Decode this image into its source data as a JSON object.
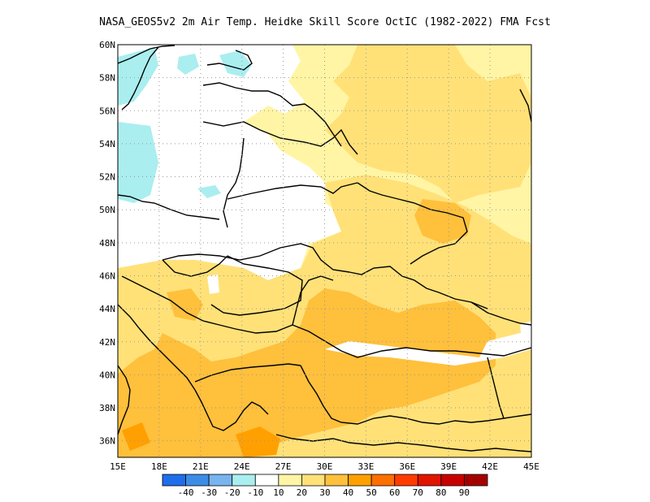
{
  "title": "NASA_GEOS5v2  2m Air Temp. Heidke Skill Score OctIC (1982-2022) FMA Fcst",
  "map": {
    "lon_ticks": [
      "15E",
      "18E",
      "21E",
      "24E",
      "27E",
      "30E",
      "33E",
      "36E",
      "39E",
      "42E",
      "45E"
    ],
    "lat_ticks": [
      "36N",
      "38N",
      "40N",
      "42N",
      "44N",
      "46N",
      "48N",
      "50N",
      "52N",
      "54N",
      "56N",
      "58N",
      "60N"
    ],
    "lon_range": [
      15,
      45
    ],
    "lat_range": [
      35,
      60
    ],
    "grid": "dotted"
  },
  "colorbar": {
    "labels": [
      "-40",
      "-30",
      "-20",
      "-10",
      "10",
      "20",
      "30",
      "40",
      "50",
      "60",
      "70",
      "80",
      "90"
    ],
    "colors": [
      "#1e6eeb",
      "#3c8ce6",
      "#78b4f0",
      "#aaeef0",
      "#ffffff",
      "#fff5a5",
      "#ffe178",
      "#ffc03c",
      "#ffa000",
      "#ff6e00",
      "#ff3c00",
      "#e11400",
      "#c80000",
      "#a50000"
    ]
  },
  "palette": {
    "white": "#ffffff",
    "c10": "#fff5a5",
    "c20": "#ffe178",
    "c30": "#ffc03c",
    "c40": "#ffa000",
    "cyan": "#aaeef0"
  }
}
